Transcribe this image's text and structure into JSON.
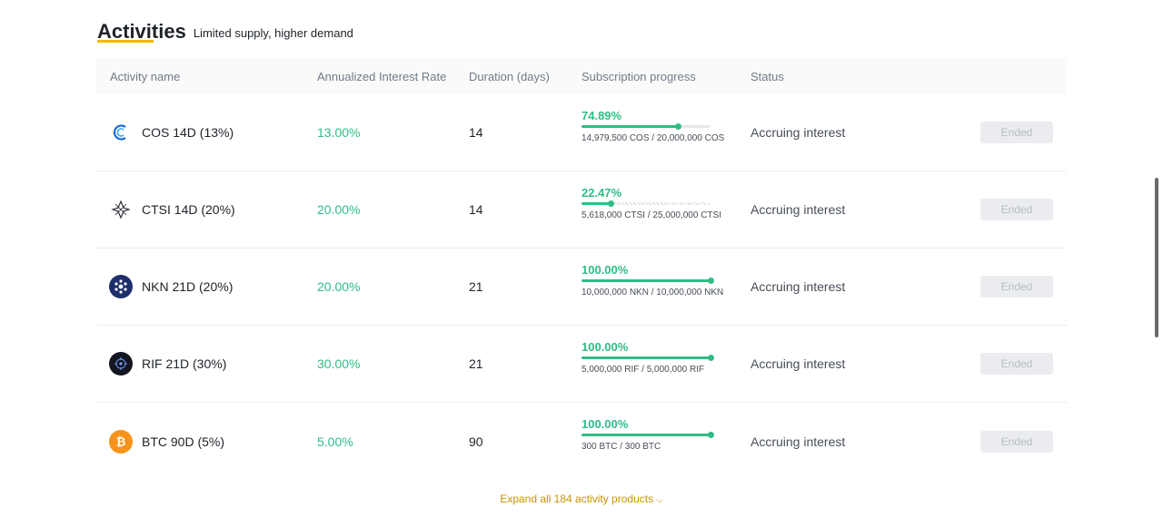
{
  "section": {
    "title": "Activities",
    "subtitle": "Limited supply, higher demand"
  },
  "table": {
    "headers": {
      "name": "Activity name",
      "rate": "Annualized Interest Rate",
      "duration": "Duration (days)",
      "progress": "Subscription progress",
      "status": "Status"
    },
    "rows": [
      {
        "name": "COS 14D (13%)",
        "icon": "cos-icon",
        "rate": "13.00%",
        "duration": "14",
        "progress_pct": "74.89%",
        "progress_fraction": 0.7489,
        "amount": "14,979,500 COS / 20,000,000 COS",
        "status": "Accruing interest",
        "action": "Ended"
      },
      {
        "name": "CTSI 14D (20%)",
        "icon": "ctsi-icon",
        "rate": "20.00%",
        "duration": "14",
        "progress_pct": "22.47%",
        "progress_fraction": 0.2247,
        "amount": "5,618,000 CTSI / 25,000,000 CTSI",
        "status": "Accruing interest",
        "action": "Ended"
      },
      {
        "name": "NKN 21D (20%)",
        "icon": "nkn-icon",
        "rate": "20.00%",
        "duration": "21",
        "progress_pct": "100.00%",
        "progress_fraction": 1.0,
        "amount": "10,000,000 NKN / 10,000,000 NKN",
        "status": "Accruing interest",
        "action": "Ended"
      },
      {
        "name": "RIF 21D (30%)",
        "icon": "rif-icon",
        "rate": "30.00%",
        "duration": "21",
        "progress_pct": "100.00%",
        "progress_fraction": 1.0,
        "amount": "5,000,000 RIF / 5,000,000 RIF",
        "status": "Accruing interest",
        "action": "Ended"
      },
      {
        "name": "BTC 90D (5%)",
        "icon": "btc-icon",
        "rate": "5.00%",
        "duration": "90",
        "progress_pct": "100.00%",
        "progress_fraction": 1.0,
        "amount": "300 BTC / 300 BTC",
        "status": "Accruing interest",
        "action": "Ended"
      }
    ]
  },
  "expand": {
    "label": "Expand all 184 activity products"
  },
  "colors": {
    "accent": "#f0b90b",
    "positive": "#2ebd85",
    "link": "#c99400",
    "button_disabled": "#eaecef"
  }
}
